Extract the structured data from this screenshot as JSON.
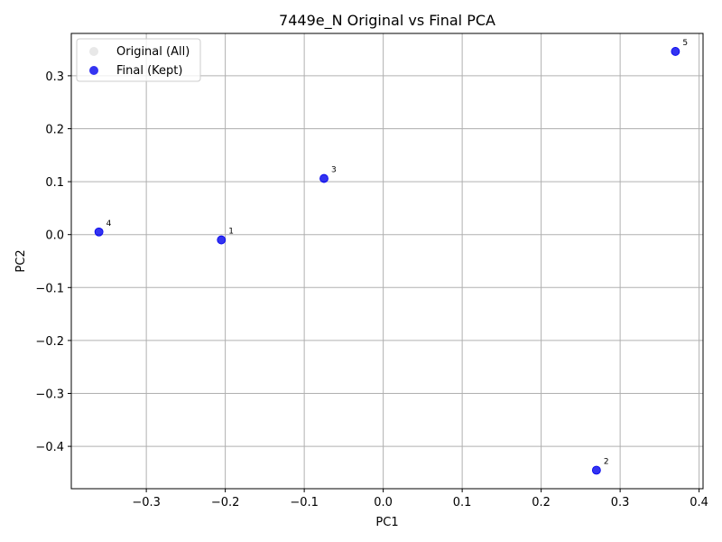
{
  "chart_data": {
    "type": "scatter",
    "title": "7449e_N Original vs Final PCA",
    "xlabel": "PC1",
    "ylabel": "PC2",
    "xlim": [
      -0.395,
      0.405
    ],
    "ylim": [
      -0.48,
      0.38
    ],
    "xticks": [
      -0.3,
      -0.2,
      -0.1,
      0.0,
      0.1,
      0.2,
      0.3,
      0.4
    ],
    "xtick_labels": [
      "−0.3",
      "−0.2",
      "−0.1",
      "0.0",
      "0.1",
      "0.2",
      "0.3",
      "0.4"
    ],
    "yticks": [
      -0.4,
      -0.3,
      -0.2,
      -0.1,
      0.0,
      0.1,
      0.2,
      0.3
    ],
    "ytick_labels": [
      "−0.4",
      "−0.3",
      "−0.2",
      "−0.1",
      "0.0",
      "0.1",
      "0.2",
      "0.3"
    ],
    "grid": true,
    "legend_position": "top-left",
    "series": [
      {
        "name": "Original (All)",
        "color": "#d9d9d9",
        "points": []
      },
      {
        "name": "Final (Kept)",
        "color": "#0000ee",
        "points": [
          {
            "x": -0.205,
            "y": -0.01,
            "label": "1"
          },
          {
            "x": 0.27,
            "y": -0.445,
            "label": "2"
          },
          {
            "x": -0.075,
            "y": 0.106,
            "label": "3"
          },
          {
            "x": -0.36,
            "y": 0.005,
            "label": "4"
          },
          {
            "x": 0.37,
            "y": 0.346,
            "label": "5"
          }
        ]
      }
    ]
  }
}
